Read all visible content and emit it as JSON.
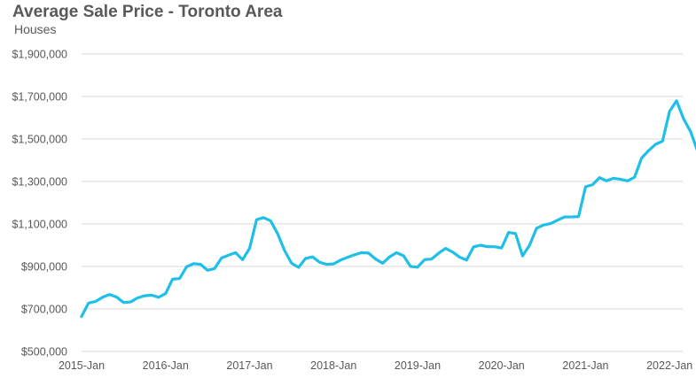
{
  "chart_data": {
    "type": "line",
    "title": "Average Sale Price - Toronto Area",
    "subtitle": "Houses",
    "xlabel": "",
    "ylabel": "",
    "ylim": [
      500000,
      1900000
    ],
    "yticks": [
      500000,
      700000,
      900000,
      1100000,
      1300000,
      1500000,
      1700000,
      1900000
    ],
    "ytick_labels": [
      "$500,000",
      "$700,000",
      "$900,000",
      "$1,100,000",
      "$1,300,000",
      "$1,500,000",
      "$1,700,000",
      "$1,900,000"
    ],
    "xtick_labels": [
      "2015-Jan",
      "2016-Jan",
      "2017-Jan",
      "2018-Jan",
      "2019-Jan",
      "2020-Jan",
      "2021-Jan",
      "2022-Jan"
    ],
    "grid": true,
    "legend": "none",
    "line_color": "#1fbfe8",
    "series": [
      {
        "x_start": "2015-Jan",
        "frequency": "monthly",
        "values": [
          665000,
          728000,
          735000,
          755000,
          768000,
          756000,
          730000,
          733000,
          752000,
          762000,
          765000,
          755000,
          772000,
          840000,
          843000,
          898000,
          913000,
          910000,
          882000,
          890000,
          940000,
          953000,
          965000,
          932000,
          985000,
          1120000,
          1130000,
          1115000,
          1055000,
          975000,
          915000,
          896000,
          938000,
          945000,
          920000,
          910000,
          912000,
          930000,
          943000,
          955000,
          965000,
          963000,
          935000,
          915000,
          945000,
          965000,
          950000,
          900000,
          897000,
          932000,
          935000,
          962000,
          985000,
          968000,
          944000,
          930000,
          992000,
          1000000,
          993000,
          993000,
          987000,
          1060000,
          1055000,
          950000,
          1000000,
          1080000,
          1095000,
          1102000,
          1118000,
          1133000,
          1133000,
          1135000,
          1275000,
          1285000,
          1318000,
          1303000,
          1315000,
          1310000,
          1303000,
          1320000,
          1410000,
          1445000,
          1475000,
          1490000,
          1630000,
          1680000,
          1595000,
          1535000,
          1443000
        ]
      }
    ]
  }
}
